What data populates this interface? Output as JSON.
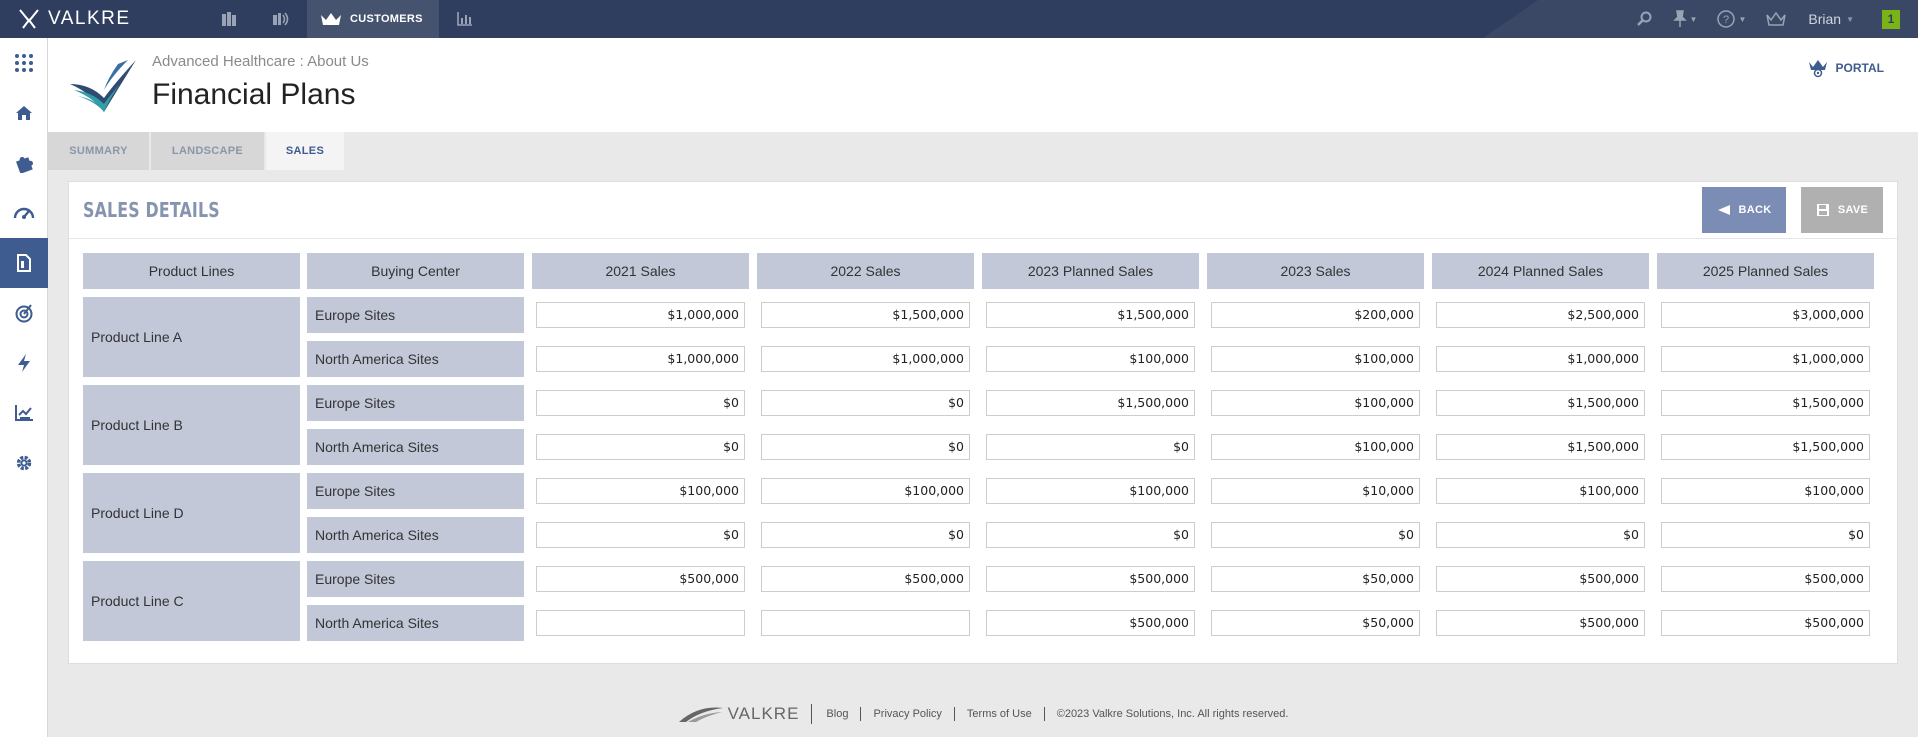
{
  "app": {
    "brand": "VALKRE",
    "nav_tab_label": "CUSTOMERS",
    "user_name": "Brian",
    "notification_count": "1",
    "accent_color": "#3e5c8f",
    "topbar_color": "#2f3e5e"
  },
  "header": {
    "breadcrumb": "Advanced Healthcare : About Us",
    "title": "Financial Plans",
    "portal_label": "PORTAL"
  },
  "tabs": [
    {
      "label": "SUMMARY",
      "active": false
    },
    {
      "label": "LANDSCAPE",
      "active": false
    },
    {
      "label": "SALES",
      "active": true
    }
  ],
  "panel": {
    "title": "SALES DETAILS",
    "back_label": "BACK",
    "save_label": "SAVE"
  },
  "table": {
    "headers": [
      "Product Lines",
      "Buying Center",
      "2021 Sales",
      "2022 Sales",
      "2023 Planned Sales",
      "2023 Sales",
      "2024 Planned Sales",
      "2025 Planned Sales"
    ],
    "groups": [
      {
        "product_line": "Product Line A",
        "rows": [
          {
            "buying_center": "Europe Sites",
            "values": [
              "$1,000,000",
              "$1,500,000",
              "$1,500,000",
              "$200,000",
              "$2,500,000",
              "$3,000,000"
            ]
          },
          {
            "buying_center": "North America Sites",
            "values": [
              "$1,000,000",
              "$1,000,000",
              "$100,000",
              "$100,000",
              "$1,000,000",
              "$1,000,000"
            ]
          }
        ]
      },
      {
        "product_line": "Product Line B",
        "rows": [
          {
            "buying_center": "Europe Sites",
            "values": [
              "$0",
              "$0",
              "$1,500,000",
              "$100,000",
              "$1,500,000",
              "$1,500,000"
            ]
          },
          {
            "buying_center": "North America Sites",
            "values": [
              "$0",
              "$0",
              "$0",
              "$100,000",
              "$1,500,000",
              "$1,500,000"
            ]
          }
        ]
      },
      {
        "product_line": "Product Line D",
        "rows": [
          {
            "buying_center": "Europe Sites",
            "values": [
              "$100,000",
              "$100,000",
              "$100,000",
              "$10,000",
              "$100,000",
              "$100,000"
            ]
          },
          {
            "buying_center": "North America Sites",
            "values": [
              "$0",
              "$0",
              "$0",
              "$0",
              "$0",
              "$0"
            ]
          }
        ]
      },
      {
        "product_line": "Product Line C",
        "rows": [
          {
            "buying_center": "Europe Sites",
            "values": [
              "$500,000",
              "$500,000",
              "$500,000",
              "$50,000",
              "$500,000",
              "$500,000"
            ]
          },
          {
            "buying_center": "North America Sites",
            "values": [
              "",
              "",
              "$500,000",
              "$50,000",
              "$500,000",
              "$500,000"
            ]
          }
        ]
      }
    ]
  },
  "footer": {
    "brand": "VALKRE",
    "links": [
      "Blog",
      "Privacy Policy",
      "Terms of Use"
    ],
    "copyright": "©2023 Valkre Solutions, Inc. All rights reserved."
  },
  "icons": {
    "topbar_nav": [
      "buildings-icon",
      "broadcast-icon",
      "crown-icon",
      "bar-chart-icon"
    ],
    "topbar_right": [
      "search-icon",
      "pin-icon",
      "help-icon",
      "crown-outline-icon"
    ],
    "sidebar": [
      "apps-grid-icon",
      "home-icon",
      "puzzle-icon",
      "gauge-icon",
      "document-icon",
      "target-icon",
      "lightning-icon",
      "chart-check-icon",
      "gear-icon"
    ]
  }
}
